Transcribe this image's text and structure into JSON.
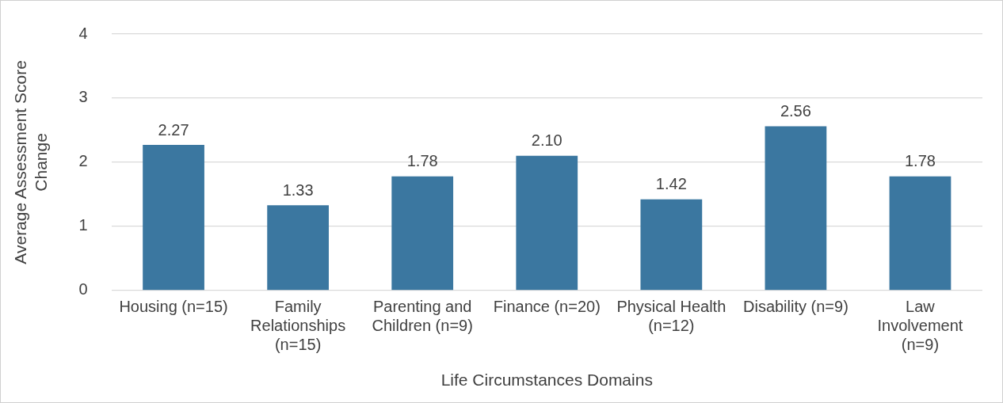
{
  "chart_data": {
    "type": "bar",
    "xlabel": "Life Circumstances Domains",
    "ylabel": "Average Assessment Score Change",
    "categories": [
      "Housing (n=15)",
      "Family Relationships (n=15)",
      "Parenting and Children (n=9)",
      "Finance (n=20)",
      "Physical Health (n=12)",
      "Disability (n=9)",
      "Law Involvement (n=9)"
    ],
    "values": [
      2.27,
      1.33,
      1.78,
      2.1,
      1.42,
      2.56,
      1.78
    ],
    "value_labels": [
      "2.27",
      "1.33",
      "1.78",
      "2.10",
      "1.42",
      "2.56",
      "1.78"
    ],
    "color": "#3b77a0",
    "ylim": [
      0,
      4
    ],
    "yticks": [
      0,
      1,
      2,
      3,
      4
    ],
    "grid": "y",
    "legend": false
  }
}
